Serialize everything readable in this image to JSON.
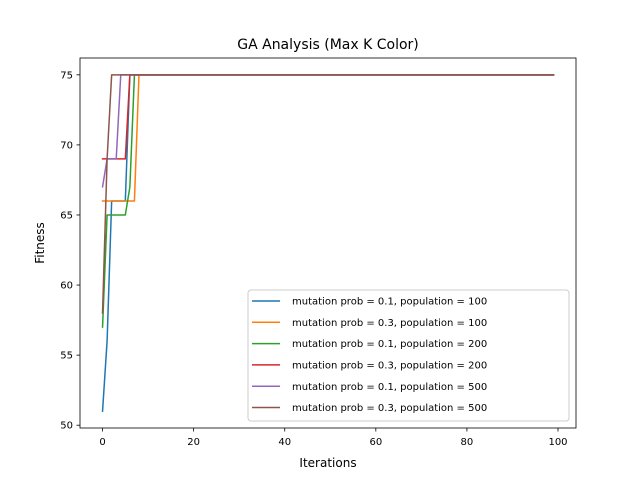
{
  "chart_data": {
    "type": "line",
    "title": "GA Analysis (Max K Color)",
    "xlabel": "Iterations",
    "ylabel": "Fitness",
    "xlim": [
      -4.95,
      103.95
    ],
    "ylim": [
      49.8,
      76.2
    ],
    "x_ticks": [
      0,
      20,
      40,
      60,
      80,
      100
    ],
    "y_ticks": [
      50,
      55,
      60,
      65,
      70,
      75
    ],
    "grid": false,
    "legend_position": "lower-right",
    "series": [
      {
        "name": "mutation prob = 0.1, population = 100",
        "color": "#1f77b4",
        "x": [
          0,
          1,
          2,
          3,
          4,
          5,
          6,
          99
        ],
        "y": [
          51,
          56,
          66,
          66,
          66,
          66,
          75,
          75
        ]
      },
      {
        "name": "mutation prob = 0.3, population = 100",
        "color": "#ff7f0e",
        "x": [
          0,
          1,
          2,
          3,
          4,
          5,
          6,
          7,
          8,
          99
        ],
        "y": [
          66,
          66,
          66,
          66,
          66,
          66,
          66,
          66,
          75,
          75
        ]
      },
      {
        "name": "mutation prob = 0.1, population = 200",
        "color": "#2ca02c",
        "x": [
          0,
          1,
          2,
          3,
          4,
          5,
          6,
          7,
          99
        ],
        "y": [
          57,
          65,
          65,
          65,
          65,
          65,
          67,
          75,
          75
        ]
      },
      {
        "name": "mutation prob = 0.3, population = 200",
        "color": "#d62728",
        "x": [
          0,
          1,
          2,
          3,
          4,
          5,
          6,
          99
        ],
        "y": [
          69,
          69,
          69,
          69,
          69,
          69,
          75,
          75
        ]
      },
      {
        "name": "mutation prob = 0.1, population = 500",
        "color": "#9467bd",
        "x": [
          0,
          1,
          2,
          3,
          4,
          99
        ],
        "y": [
          67,
          69,
          69,
          69,
          75,
          75
        ]
      },
      {
        "name": "mutation prob = 0.3, population = 500",
        "color": "#8c564b",
        "x": [
          0,
          1,
          2,
          99
        ],
        "y": [
          58,
          69,
          75,
          75
        ]
      }
    ]
  }
}
